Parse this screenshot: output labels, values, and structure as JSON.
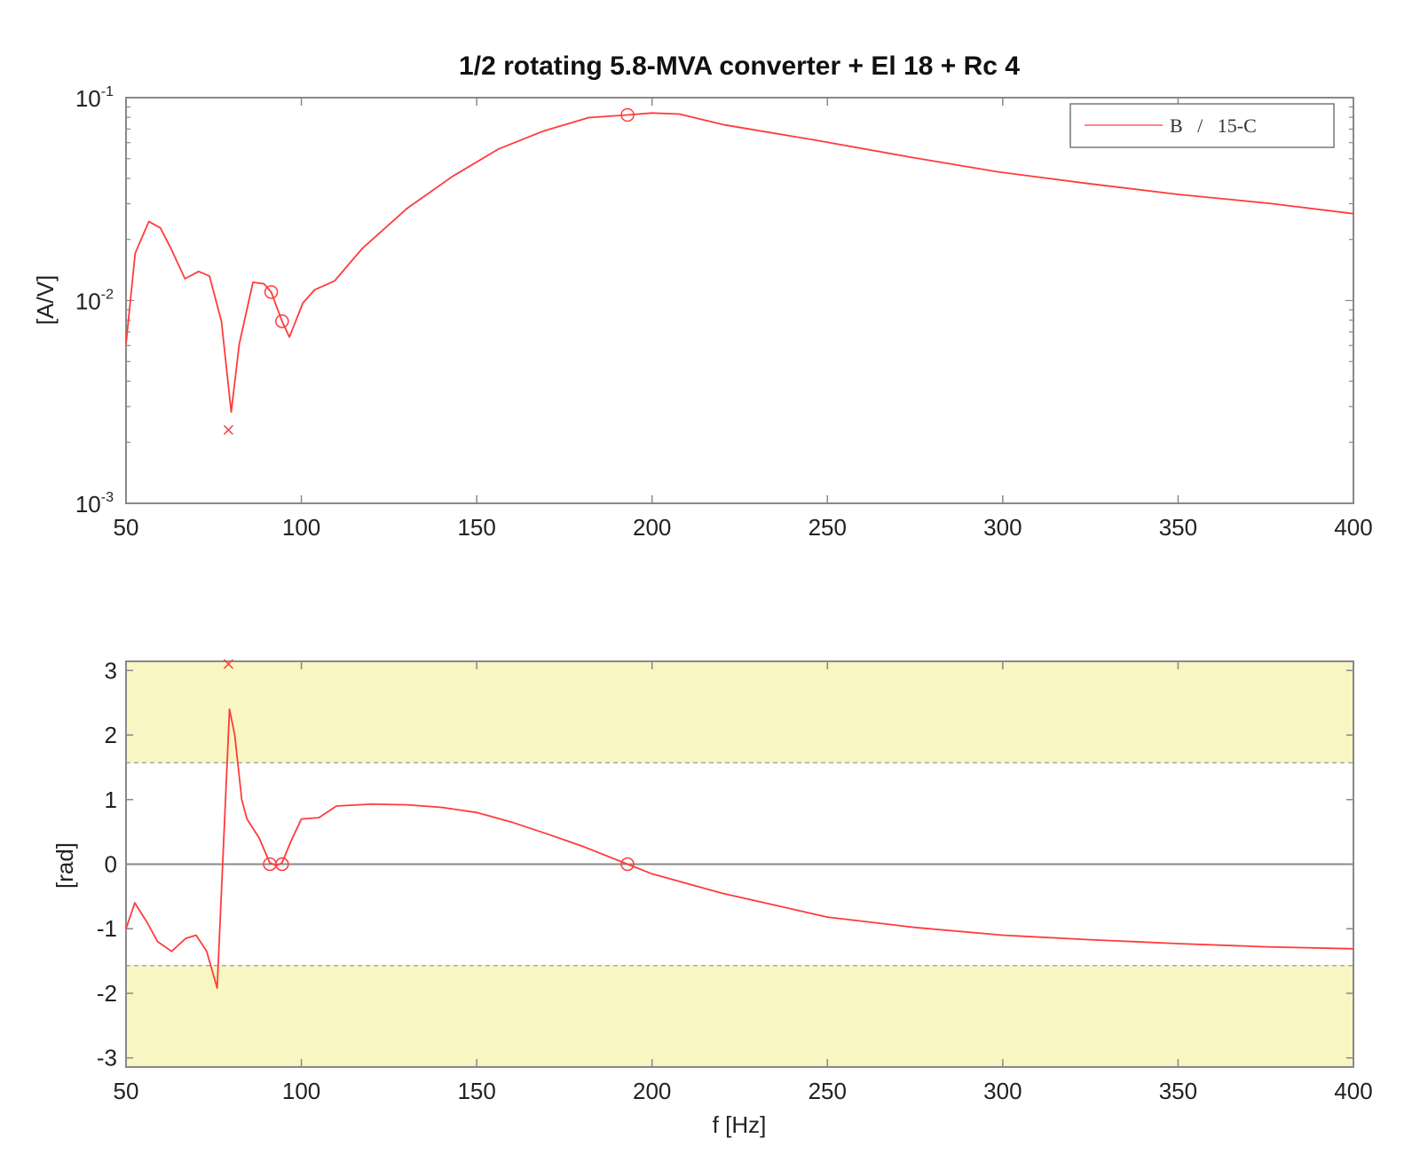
{
  "chart_data": [
    {
      "type": "line",
      "title": "1/2 rotating 5.8-MVA converter  +  El 18  +  Rc 4",
      "xlabel": "",
      "ylabel": "[A/V]",
      "yscale": "log",
      "xlim": [
        50,
        400
      ],
      "ylim": [
        0.001,
        0.1
      ],
      "xticks": [
        "50",
        "100",
        "150",
        "200",
        "250",
        "300",
        "350",
        "400"
      ],
      "yticks": [
        {
          "base": "10",
          "exp": "-1",
          "value": 0.1
        },
        {
          "base": "10",
          "exp": "-2",
          "value": 0.01
        },
        {
          "base": "10",
          "exp": "-3",
          "value": 0.001
        }
      ],
      "legend": {
        "placement": "top-right",
        "entries": [
          {
            "label": "B   /   15-C",
            "color": "#ff3b3b"
          }
        ]
      },
      "series": [
        {
          "name": "B / 15-C",
          "color": "#ff3b3b",
          "x": [
            50,
            52.6,
            56.5,
            59.8,
            62.9,
            66.8,
            70.7,
            73.8,
            77.2,
            80,
            82.3,
            86.2,
            89.3,
            91.4,
            94.5,
            96.6,
            100.4,
            103.8,
            109.5,
            117.3,
            130.2,
            143.1,
            156.1,
            169,
            181.9,
            193,
            200,
            207.8,
            220.7,
            246.6,
            272.5,
            298.5,
            324.4,
            350.3,
            376.1,
            400
          ],
          "y": [
            0.0061,
            0.0171,
            0.0245,
            0.0228,
            0.0179,
            0.0128,
            0.0139,
            0.0132,
            0.0079,
            0.00282,
            0.0061,
            0.0123,
            0.0121,
            0.011,
            0.0079,
            0.0066,
            0.0097,
            0.0113,
            0.0125,
            0.018,
            0.0285,
            0.0409,
            0.0557,
            0.0684,
            0.0797,
            0.0822,
            0.084,
            0.083,
            0.0734,
            0.0617,
            0.0513,
            0.0431,
            0.0377,
            0.0333,
            0.0301,
            0.0268
          ]
        }
      ],
      "markers": {
        "circles": [
          {
            "x": 91.4,
            "y": 0.011
          },
          {
            "x": 94.5,
            "y": 0.0079
          },
          {
            "x": 193,
            "y": 0.0822
          }
        ],
        "crosses": [
          {
            "x": 79.2,
            "y": 0.0023
          }
        ]
      }
    },
    {
      "type": "line",
      "title": "",
      "xlabel": "f  [Hz]",
      "ylabel": "[rad]",
      "xlim": [
        50,
        400
      ],
      "ylim": [
        -3.1416,
        3.1416
      ],
      "xticks": [
        "50",
        "100",
        "150",
        "200",
        "250",
        "300",
        "350",
        "400"
      ],
      "yticks": [
        "3",
        "2",
        "1",
        "0",
        "-1",
        "-2",
        "-3"
      ],
      "shaded_regions": [
        {
          "from": 1.5708,
          "to": 3.1416,
          "color": "#f8f6c2"
        },
        {
          "from": -3.1416,
          "to": -1.5708,
          "color": "#f8f6c2"
        }
      ],
      "series": [
        {
          "name": "B / 15-C",
          "color": "#ff3b3b",
          "x": [
            50,
            52.5,
            56,
            59,
            63,
            67,
            70,
            73,
            76,
            79.5,
            81,
            83,
            84.5,
            88,
            91,
            93,
            94.5,
            97,
            100,
            105,
            110,
            120,
            130,
            140,
            150,
            160,
            170,
            180,
            193,
            200,
            220,
            250,
            275,
            300,
            325,
            350,
            375,
            400
          ],
          "y": [
            -1.0,
            -0.6,
            -0.9,
            -1.2,
            -1.35,
            -1.15,
            -1.1,
            -1.35,
            -1.92,
            2.4,
            2.0,
            1.0,
            0.7,
            0.4,
            0.02,
            -0.02,
            0.02,
            0.35,
            0.7,
            0.72,
            0.9,
            0.93,
            0.92,
            0.88,
            0.8,
            0.65,
            0.47,
            0.28,
            0.0,
            -0.15,
            -0.45,
            -0.82,
            -0.98,
            -1.1,
            -1.17,
            -1.23,
            -1.28,
            -1.31
          ]
        }
      ],
      "markers": {
        "circles": [
          {
            "x": 91,
            "y": 0
          },
          {
            "x": 94.5,
            "y": 0
          },
          {
            "x": 193,
            "y": 0
          }
        ],
        "crosses": [
          {
            "x": 79.2,
            "y": 3.1
          }
        ]
      }
    }
  ]
}
